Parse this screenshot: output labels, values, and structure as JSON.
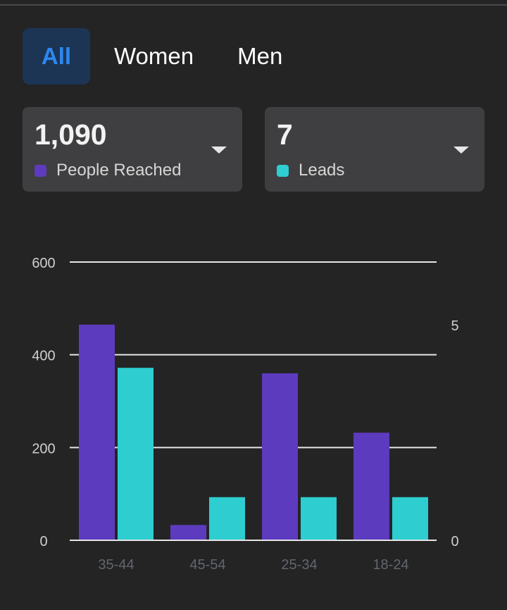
{
  "tabs": [
    {
      "label": "All",
      "active": true
    },
    {
      "label": "Women",
      "active": false
    },
    {
      "label": "Men",
      "active": false
    }
  ],
  "metrics": {
    "reach": {
      "value": "1,090",
      "label": "People Reached",
      "color": "#5d3bbe"
    },
    "leads": {
      "value": "7",
      "label": "Leads",
      "color": "#2ecdd0"
    }
  },
  "chart_data": {
    "type": "bar",
    "categories": [
      "35-44",
      "45-54",
      "25-34",
      "18-24"
    ],
    "series": [
      {
        "name": "People Reached",
        "axis": "left",
        "color": "#5d3bbe",
        "values": [
          465,
          33,
          360,
          232
        ]
      },
      {
        "name": "Leads",
        "axis": "right",
        "color": "#2ecdd0",
        "values": [
          4,
          1,
          1,
          1
        ]
      }
    ],
    "left_axis": {
      "ticks": [
        "0",
        "200",
        "400",
        "600"
      ],
      "ylim": [
        0,
        600
      ]
    },
    "right_axis": {
      "ticks": [
        "0",
        "5"
      ],
      "ylim": [
        0,
        5
      ]
    },
    "grid": true
  }
}
